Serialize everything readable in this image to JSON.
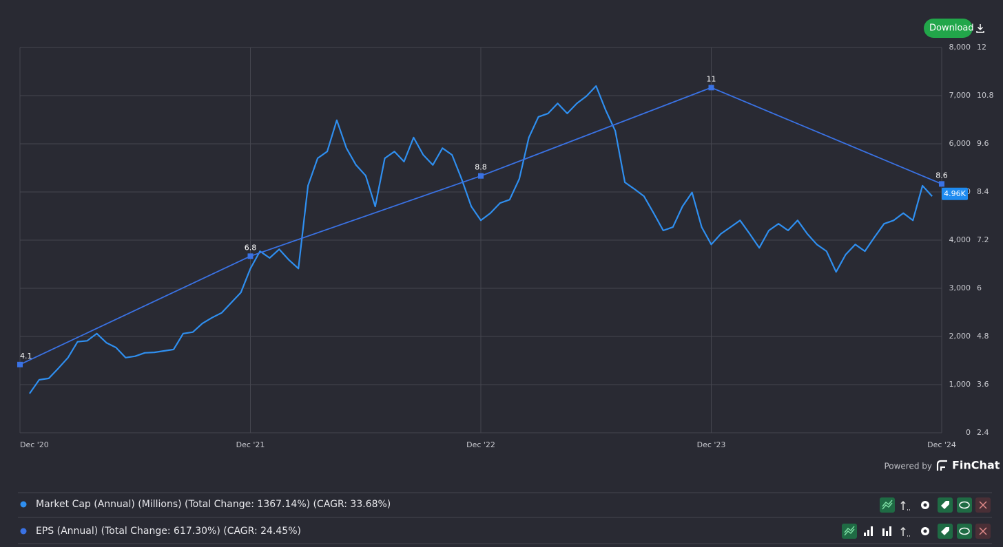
{
  "ui": {
    "download": "Download",
    "powered_by": "Powered by",
    "brand": "FinChat"
  },
  "chart_data": [
    {
      "type": "line",
      "categories": [
        "Dec '20",
        null,
        null,
        null,
        null,
        null,
        null,
        null,
        null,
        null,
        null,
        null,
        null,
        null,
        null,
        null,
        null,
        null,
        null,
        null,
        null,
        null,
        null,
        null,
        "Dec '21",
        null,
        null,
        null,
        null,
        null,
        null,
        null,
        null,
        null,
        null,
        null,
        null,
        null,
        null,
        null,
        null,
        null,
        null,
        null,
        null,
        null,
        null,
        null,
        "Dec '22",
        null,
        null,
        null,
        null,
        null,
        null,
        null,
        null,
        null,
        null,
        null,
        null,
        null,
        null,
        null,
        null,
        null,
        null,
        null,
        null,
        null,
        null,
        null,
        "Dec '23",
        null,
        null,
        null,
        null,
        null,
        null,
        null,
        null,
        null,
        null,
        null,
        null,
        null,
        null,
        null,
        null,
        null,
        null,
        null,
        null,
        null,
        null,
        null,
        "Dec '24"
      ],
      "series": [
        {
          "name": "Market Cap (Annual) (Millions) (Total Change: 1367.14%) (CAGR: 33.68%)",
          "color": "#2f8ff0",
          "values": [
            null,
            814,
            1100,
            1130,
            1340,
            1560,
            1890,
            1910,
            2060,
            1870,
            1770,
            1560,
            1590,
            1660,
            1670,
            1700,
            1730,
            2060,
            2090,
            2270,
            2390,
            2490,
            2700,
            2910,
            3410,
            3770,
            3630,
            3810,
            3590,
            3410,
            5130,
            5700,
            5840,
            6490,
            5910,
            5560,
            5340,
            4700,
            5700,
            5840,
            5630,
            6130,
            5770,
            5560,
            5910,
            5770,
            5270,
            4700,
            4410,
            4560,
            4770,
            4840,
            5270,
            6130,
            6560,
            6630,
            6840,
            6630,
            6840,
            6990,
            7200,
            6700,
            6270,
            5200,
            5060,
            4910,
            4560,
            4200,
            4270,
            4700,
            4990,
            4270,
            3910,
            4130,
            4270,
            4410,
            4130,
            3840,
            4200,
            4340,
            4200,
            4410,
            4130,
            3910,
            3770,
            3340,
            3700,
            3910,
            3770,
            4060,
            4340,
            4410,
            4560,
            4410,
            5130,
            4910,
            null
          ]
        }
      ],
      "current_value": {
        "value": 4960,
        "label": "4.96K"
      },
      "ylim": [
        0,
        8000
      ],
      "yticks": [
        0,
        {
          "value": 1000,
          "label": "1,000"
        },
        {
          "value": 2000,
          "label": "2,000"
        },
        {
          "value": 3000,
          "label": "3,000"
        },
        {
          "value": 4000,
          "label": "4,000"
        },
        {
          "value": 5000,
          "label": "5,000"
        },
        {
          "value": 6000,
          "label": "6,000"
        },
        {
          "value": 7000,
          "label": "7,000"
        },
        {
          "value": 8000,
          "label": "8,000"
        }
      ],
      "grid": true
    },
    {
      "type": "line",
      "series": [
        {
          "name": "EPS (Annual) (Total Change: 617.30%) (CAGR: 24.45%)",
          "color": "#3a72e4",
          "values": [
            4.1,
            6.8,
            8.8,
            11,
            8.6
          ]
        }
      ],
      "ylim": [
        2.4,
        12
      ],
      "yticks": [
        2.4,
        3.6,
        4.8,
        6,
        7.2,
        8.4,
        9.6,
        10.8,
        12
      ]
    }
  ]
}
